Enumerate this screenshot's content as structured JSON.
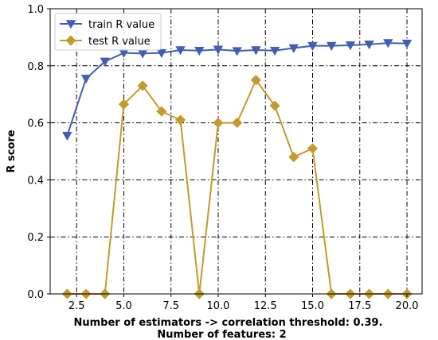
{
  "chart_data": {
    "type": "line",
    "title": "",
    "xlabel": "Number of estimators -> correlation threshold: 0.39.",
    "xlabel_line2": "Number of features:  2",
    "ylabel": "R score",
    "xlim": [
      1.1,
      20.8
    ],
    "ylim": [
      0.0,
      1.0
    ],
    "x_ticks": [
      2.5,
      5.0,
      7.5,
      10.0,
      12.5,
      15.0,
      17.5,
      20.0
    ],
    "x_tick_labels": [
      "2.5",
      "5.0",
      "7.5",
      "10.0",
      "12.5",
      "15.0",
      "17.5",
      "20.0"
    ],
    "y_ticks": [
      0.0,
      0.2,
      0.4,
      0.6,
      0.8,
      1.0
    ],
    "y_tick_labels": [
      "0.0",
      "0.2",
      "0.4",
      "0.6",
      "0.8",
      "1.0"
    ],
    "grid": true,
    "legend_position": "top-left",
    "x": [
      2,
      3,
      4,
      5,
      6,
      7,
      8,
      9,
      10,
      11,
      12,
      13,
      14,
      15,
      16,
      17,
      18,
      19,
      20
    ],
    "series": [
      {
        "name": "train R value",
        "color": "#3f5fb5",
        "marker": "triangle-down",
        "values": [
          0.555,
          0.755,
          0.815,
          0.845,
          0.843,
          0.845,
          0.855,
          0.853,
          0.857,
          0.852,
          0.855,
          0.853,
          0.862,
          0.87,
          0.87,
          0.872,
          0.875,
          0.88,
          0.878
        ]
      },
      {
        "name": "test R value",
        "color": "#c49a2b",
        "marker": "diamond",
        "values": [
          0.0,
          0.0,
          0.0,
          0.665,
          0.73,
          0.64,
          0.61,
          0.0,
          0.6,
          0.6,
          0.75,
          0.66,
          0.48,
          0.51,
          0.0,
          0.0,
          0.0,
          0.0,
          0.0
        ]
      }
    ]
  }
}
